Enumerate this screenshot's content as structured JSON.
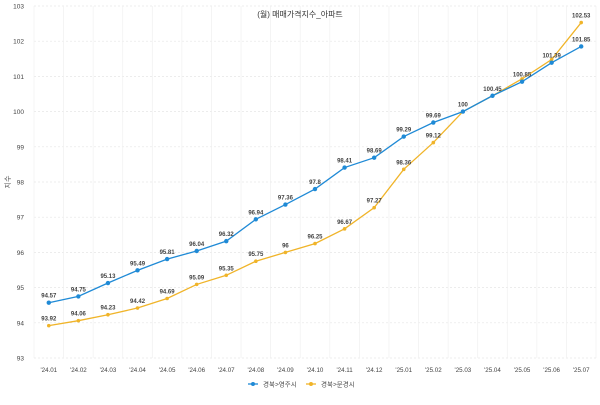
{
  "chart_data": {
    "type": "line",
    "title": "(월) 매매가격지수_아파트",
    "xlabel": "",
    "ylabel": "지수",
    "ylim": [
      93,
      103
    ],
    "yticks": [
      93,
      94,
      95,
      96,
      97,
      98,
      99,
      100,
      101,
      102,
      103
    ],
    "grid": true,
    "legend_position": "bottom-center",
    "categories": [
      "'24.01",
      "'24.02",
      "'24.03",
      "'24.04",
      "'24.05",
      "'24.06",
      "'24.07",
      "'24.08",
      "'24.09",
      "'24.10",
      "'24.11",
      "'24.12",
      "'25.01",
      "'25.02",
      "'25.03",
      "'25.04",
      "'25.05",
      "'25.06",
      "'25.07"
    ],
    "series": [
      {
        "name": "경북>영주시",
        "color": "#1f8ad6",
        "values": [
          94.57,
          94.75,
          95.13,
          95.49,
          95.81,
          96.04,
          96.32,
          96.94,
          97.36,
          97.8,
          98.41,
          98.69,
          99.29,
          99.69,
          100,
          100.45,
          100.85,
          101.39,
          101.85
        ],
        "labels": [
          "94.57",
          "94.75",
          "95.13",
          "95.49",
          "95.81",
          "96.04",
          "96.32",
          "96.94",
          "97.36",
          "97.8",
          "98.41",
          "98.69",
          "99.29",
          "99.69",
          "100",
          "100.45",
          "100.85",
          "101.39",
          "101.85"
        ]
      },
      {
        "name": "경북>문경시",
        "color": "#f0b429",
        "values": [
          93.92,
          94.06,
          94.23,
          94.42,
          94.69,
          95.09,
          95.35,
          95.75,
          96,
          96.25,
          96.67,
          97.27,
          98.36,
          99.12,
          100,
          100.45,
          100.93,
          101.48,
          102.53
        ],
        "labels": [
          "93.92",
          "94.06",
          "94.23",
          "94.42",
          "94.69",
          "95.09",
          "95.35",
          "95.75",
          "96",
          "96.25",
          "96.67",
          "97.27",
          "98.36",
          "99.12",
          "",
          "",
          "",
          "",
          "102.53"
        ]
      }
    ]
  }
}
